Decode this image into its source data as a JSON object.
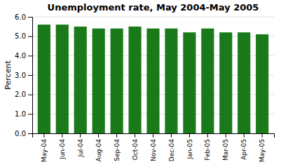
{
  "chart_data": {
    "type": "bar",
    "title": "Unemployment rate, May 2004-May 2005",
    "categories": [
      "May-04",
      "Jun-04",
      "Jul-04",
      "Aug-04",
      "Sep-04",
      "Oct-04",
      "Nov-04",
      "Dec-04",
      "Jan-05",
      "Feb-05",
      "Mar-05",
      "Apr-05",
      "May-05"
    ],
    "values": [
      5.6,
      5.6,
      5.5,
      5.4,
      5.4,
      5.5,
      5.4,
      5.4,
      5.2,
      5.4,
      5.2,
      5.2,
      5.1
    ],
    "color": "#1a7a1a",
    "ylabel": "Percent",
    "ylim": [
      0.0,
      6.0
    ],
    "yticks": [
      {
        "value": 0.0,
        "label": "0.0"
      },
      {
        "value": 1.0,
        "label": "1.0"
      },
      {
        "value": 2.0,
        "label": "2.0"
      },
      {
        "value": 3.0,
        "label": "3.0"
      },
      {
        "value": 4.0,
        "label": "4.0"
      },
      {
        "value": 5.0,
        "label": "5.0"
      },
      {
        "value": 6.0,
        "label": "6.0"
      }
    ],
    "grid": true
  }
}
